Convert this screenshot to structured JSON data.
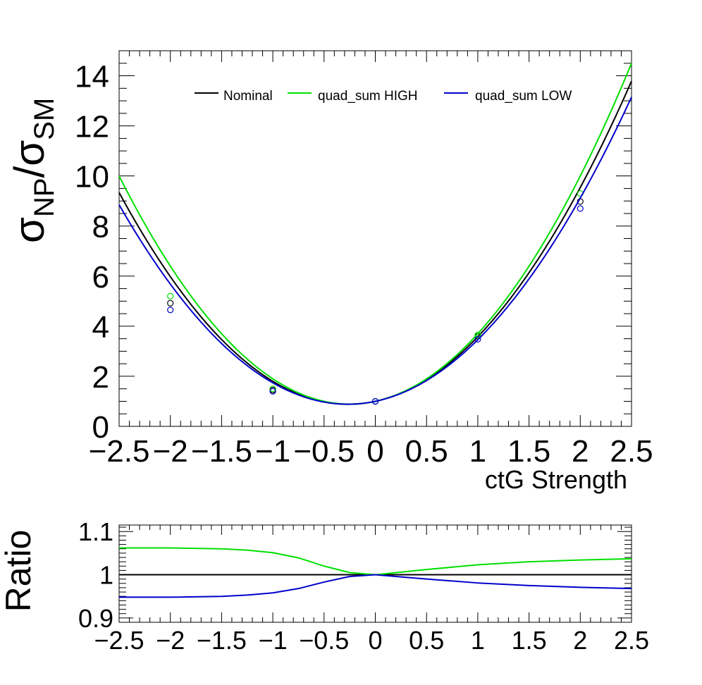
{
  "chart_data": [
    {
      "type": "line",
      "title": "",
      "xlabel": "ctG Strength",
      "ylabel_main": "σ",
      "ylabel_sub1": "NP",
      "ylabel_slash": "/σ",
      "ylabel_sub2": "SM",
      "xlim": [
        -2.5,
        2.5
      ],
      "ylim": [
        0,
        15
      ],
      "xticks": [
        "−2.5",
        "−2",
        "−1.5",
        "−1",
        "−0.5",
        "0",
        "0.5",
        "1",
        "1.5",
        "2",
        "2.5"
      ],
      "xtick_values": [
        -2.5,
        -2,
        -1.5,
        -1,
        -0.5,
        0,
        0.5,
        1,
        1.5,
        2,
        2.5
      ],
      "yticks": [
        "0",
        "2",
        "4",
        "6",
        "8",
        "10",
        "12",
        "14"
      ],
      "ytick_values": [
        0,
        2,
        4,
        6,
        8,
        10,
        12,
        14
      ],
      "grid": true,
      "legend_position": "top",
      "series": [
        {
          "name": "Nominal",
          "color": "#000000",
          "points_x": [
            -2,
            -1,
            0,
            1,
            2
          ],
          "points_y": [
            4.92,
            1.45,
            1.0,
            3.6,
            8.98
          ],
          "coeffs": [
            1.0,
            0.89,
            1.69
          ]
        },
        {
          "name": "quad_sum HIGH",
          "color": "#00e000",
          "points_x": [
            -2,
            -1,
            0,
            1,
            2
          ],
          "points_y": [
            5.2,
            1.5,
            1.0,
            3.65,
            9.3
          ],
          "coeffs": [
            1.0,
            0.9,
            1.8
          ]
        },
        {
          "name": "quad_sum LOW",
          "color": "#0000cc",
          "points_x": [
            -2,
            -1,
            0,
            1,
            2
          ],
          "points_y": [
            4.65,
            1.4,
            1.0,
            3.48,
            8.7
          ],
          "coeffs": [
            1.0,
            0.86,
            1.6
          ]
        }
      ]
    },
    {
      "type": "line",
      "ylabel": "Ratio",
      "xlim": [
        -2.5,
        2.5
      ],
      "ylim": [
        0.89,
        1.115
      ],
      "xticks": [
        "−2.5",
        "−2",
        "−1.5",
        "−1",
        "−0.5",
        "0",
        "0.5",
        "1",
        "1.5",
        "2",
        "2.5"
      ],
      "xtick_values": [
        -2.5,
        -2,
        -1.5,
        -1,
        -0.5,
        0,
        0.5,
        1,
        1.5,
        2,
        2.5
      ],
      "yticks": [
        "0.9",
        "1",
        "1.1"
      ],
      "ytick_values": [
        0.9,
        1.0,
        1.1
      ],
      "grid": true,
      "series": [
        {
          "name": "Nominal",
          "color": "#000000",
          "x": [
            -2.5,
            -2,
            -1.5,
            -1,
            -0.5,
            0,
            0.5,
            1,
            1.5,
            2,
            2.5
          ],
          "y": [
            1.0,
            1.0,
            1.0,
            1.0,
            1.0,
            1.0,
            1.0,
            1.0,
            1.0,
            1.0,
            1.0
          ]
        },
        {
          "name": "quad_sum HIGH",
          "color": "#00e000",
          "x": [
            -2.5,
            -2,
            -1.5,
            -1.25,
            -1,
            -0.75,
            -0.5,
            -0.25,
            0,
            0.25,
            0.5,
            1,
            1.5,
            2,
            2.5
          ],
          "y": [
            1.062,
            1.062,
            1.06,
            1.057,
            1.051,
            1.039,
            1.02,
            1.005,
            1.0,
            1.006,
            1.012,
            1.023,
            1.03,
            1.034,
            1.037
          ]
        },
        {
          "name": "quad_sum LOW",
          "color": "#0000cc",
          "x": [
            -2.5,
            -2,
            -1.5,
            -1.25,
            -1,
            -0.75,
            -0.5,
            -0.25,
            0,
            0.25,
            0.5,
            1,
            1.5,
            2,
            2.5
          ],
          "y": [
            0.948,
            0.948,
            0.95,
            0.953,
            0.958,
            0.968,
            0.983,
            0.996,
            1.0,
            0.995,
            0.99,
            0.981,
            0.975,
            0.971,
            0.968
          ]
        }
      ]
    }
  ]
}
